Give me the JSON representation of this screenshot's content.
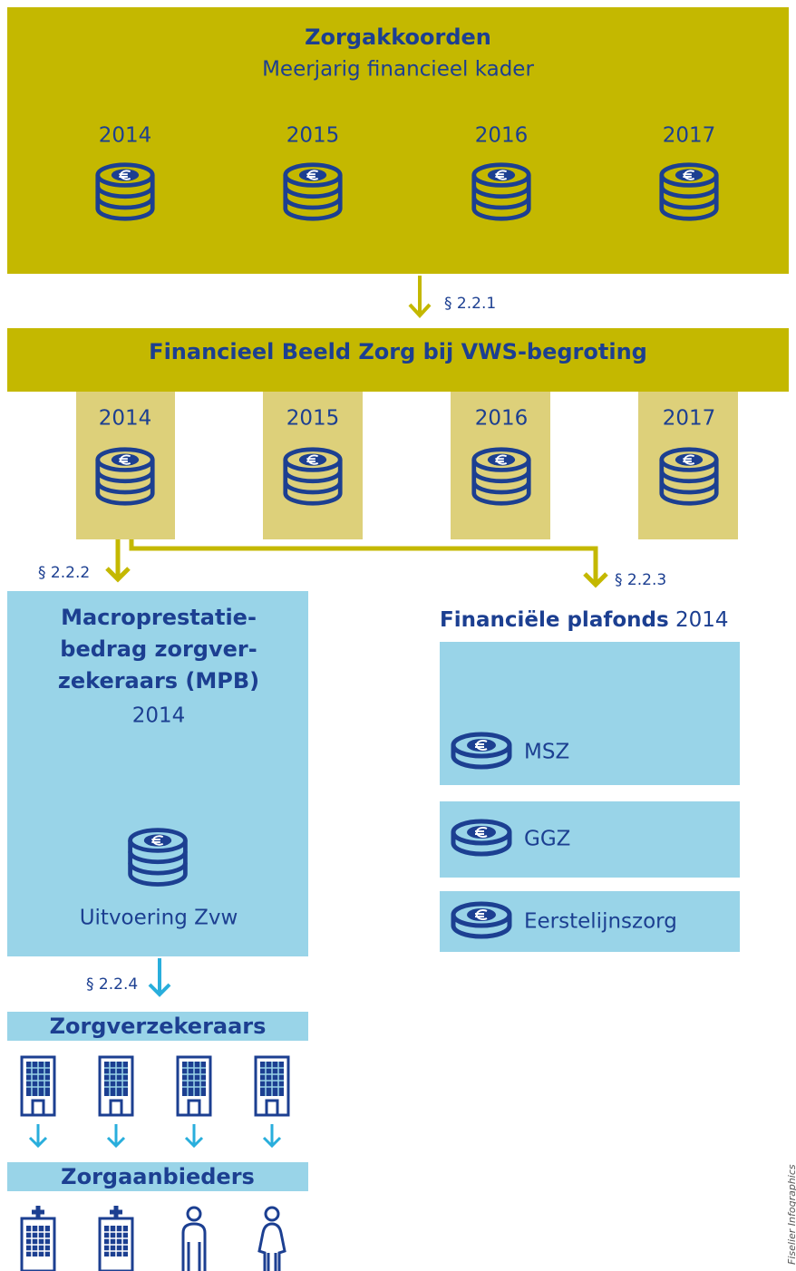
{
  "top": {
    "title": "Zorgakkoorden",
    "subtitle": "Meerjarig financieel kader",
    "years": [
      "2014",
      "2015",
      "2016",
      "2017"
    ]
  },
  "step1": "§ 2.2.1",
  "middle": {
    "title": "Financieel Beeld Zorg bij VWS-begroting",
    "years": [
      "2014",
      "2015",
      "2016",
      "2017"
    ]
  },
  "step2": "§ 2.2.2",
  "step3": "§ 2.2.3",
  "mpb": {
    "lines": [
      "Macroprestatie-",
      "bedrag zorgver-",
      "zekeraars (MPB)"
    ],
    "year": "2014",
    "label": "Uitvoering Zvw"
  },
  "plafonds": {
    "title": "Financiële plafonds",
    "year": "2014",
    "items": [
      "MSZ",
      "GGZ",
      "Eerstelijnszorg"
    ]
  },
  "step4": "§ 2.2.4",
  "insurers": "Zorgverzekeraars",
  "providers": "Zorgaanbieders",
  "credit": "Fiselier Infographics"
}
